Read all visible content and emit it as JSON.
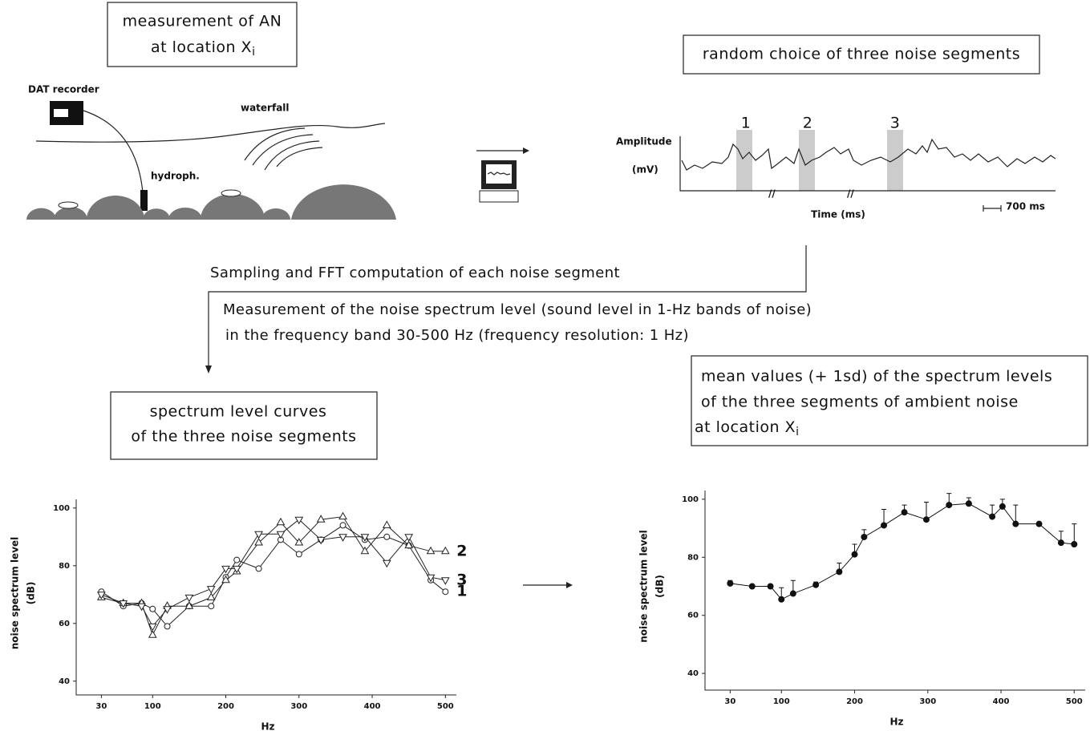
{
  "header": {
    "measure_line1": "measurement of AN",
    "measure_line2": "at location X",
    "measure_sub": "i",
    "dat": "DAT recorder",
    "waterfall": "waterfall",
    "hydrophone": "hydroph.",
    "random_choice": "random choice of three noise segments",
    "seg_labels": [
      "1",
      "2",
      "3"
    ],
    "amplitude": "Amplitude",
    "amplitude_unit": "(mV)",
    "time": "Time (ms)",
    "scale_bar": "700 ms"
  },
  "steps": {
    "sampling": "Sampling and FFT computation of each noise segment",
    "measurement_line1": "Measurement of the noise spectrum level (sound level in 1-Hz bands of noise)",
    "measurement_line2": "in the frequency band 30-500 Hz (frequency resolution: 1 Hz)"
  },
  "boxes": {
    "curves_line1": "spectrum level curves",
    "curves_line2": "of the three noise segments",
    "mean_line1": "mean values (+ 1sd) of the spectrum levels",
    "mean_line2": "of the three segments of ambient noise",
    "mean_line3": "at location X",
    "mean_sub": "i"
  },
  "chart_data": [
    {
      "type": "line",
      "ylabel": [
        "noise spectrum level",
        "(dB)"
      ],
      "xlabel": "Hz",
      "x": [
        30,
        60,
        85,
        100,
        120,
        150,
        180,
        200,
        215,
        245,
        275,
        300,
        330,
        360,
        390,
        420,
        450,
        480,
        500
      ],
      "series": [
        {
          "name": "1",
          "marker": "circle",
          "color": "#222",
          "values": [
            71,
            66,
            67,
            65,
            59,
            66,
            66,
            76,
            82,
            79,
            89,
            84,
            89,
            94,
            89,
            90,
            87,
            75,
            71
          ]
        },
        {
          "name": "2",
          "marker": "triangle-up",
          "color": "#222",
          "values": [
            69,
            67,
            67,
            56,
            66,
            66,
            69,
            75,
            78,
            88,
            95,
            88,
            96,
            97,
            85,
            94,
            87,
            85,
            85
          ]
        },
        {
          "name": "3",
          "marker": "triangle-down",
          "color": "#222",
          "values": [
            70,
            67,
            66,
            59,
            65,
            69,
            72,
            79,
            79,
            91,
            91,
            96,
            89,
            90,
            90,
            81,
            90,
            76,
            75
          ]
        }
      ],
      "xlim": [
        0,
        515
      ],
      "ylim": [
        38,
        103
      ],
      "xticks": [
        30,
        100,
        200,
        300,
        400,
        500
      ],
      "yticks": [
        40,
        60,
        80,
        100
      ]
    },
    {
      "type": "errorbar",
      "ylabel": [
        "noise spectrum level",
        "(dB)"
      ],
      "xlabel": "Hz",
      "x": [
        30,
        60,
        85,
        100,
        116,
        147,
        179,
        200,
        213,
        240,
        268,
        298,
        329,
        356,
        388,
        402,
        420,
        452,
        482,
        500
      ],
      "series": [
        {
          "marker": "dot",
          "color": "#111",
          "values": [
            71,
            70,
            70,
            65.5,
            67.5,
            70.5,
            75,
            81,
            87,
            91,
            95.5,
            93,
            98,
            98.5,
            94,
            97.5,
            91.5,
            91.5,
            85,
            84.5
          ],
          "errors": [
            1,
            0.5,
            0,
            4,
            4.5,
            1,
            3,
            3.5,
            2.5,
            5.5,
            2.5,
            6,
            4,
            2,
            4,
            2.5,
            6.5,
            0.5,
            4,
            7
          ]
        }
      ],
      "xlim": [
        0,
        515
      ],
      "ylim": [
        37,
        103
      ],
      "xticks": [
        30,
        100,
        200,
        300,
        400,
        500
      ],
      "yticks": [
        40,
        60,
        80,
        100
      ]
    }
  ]
}
